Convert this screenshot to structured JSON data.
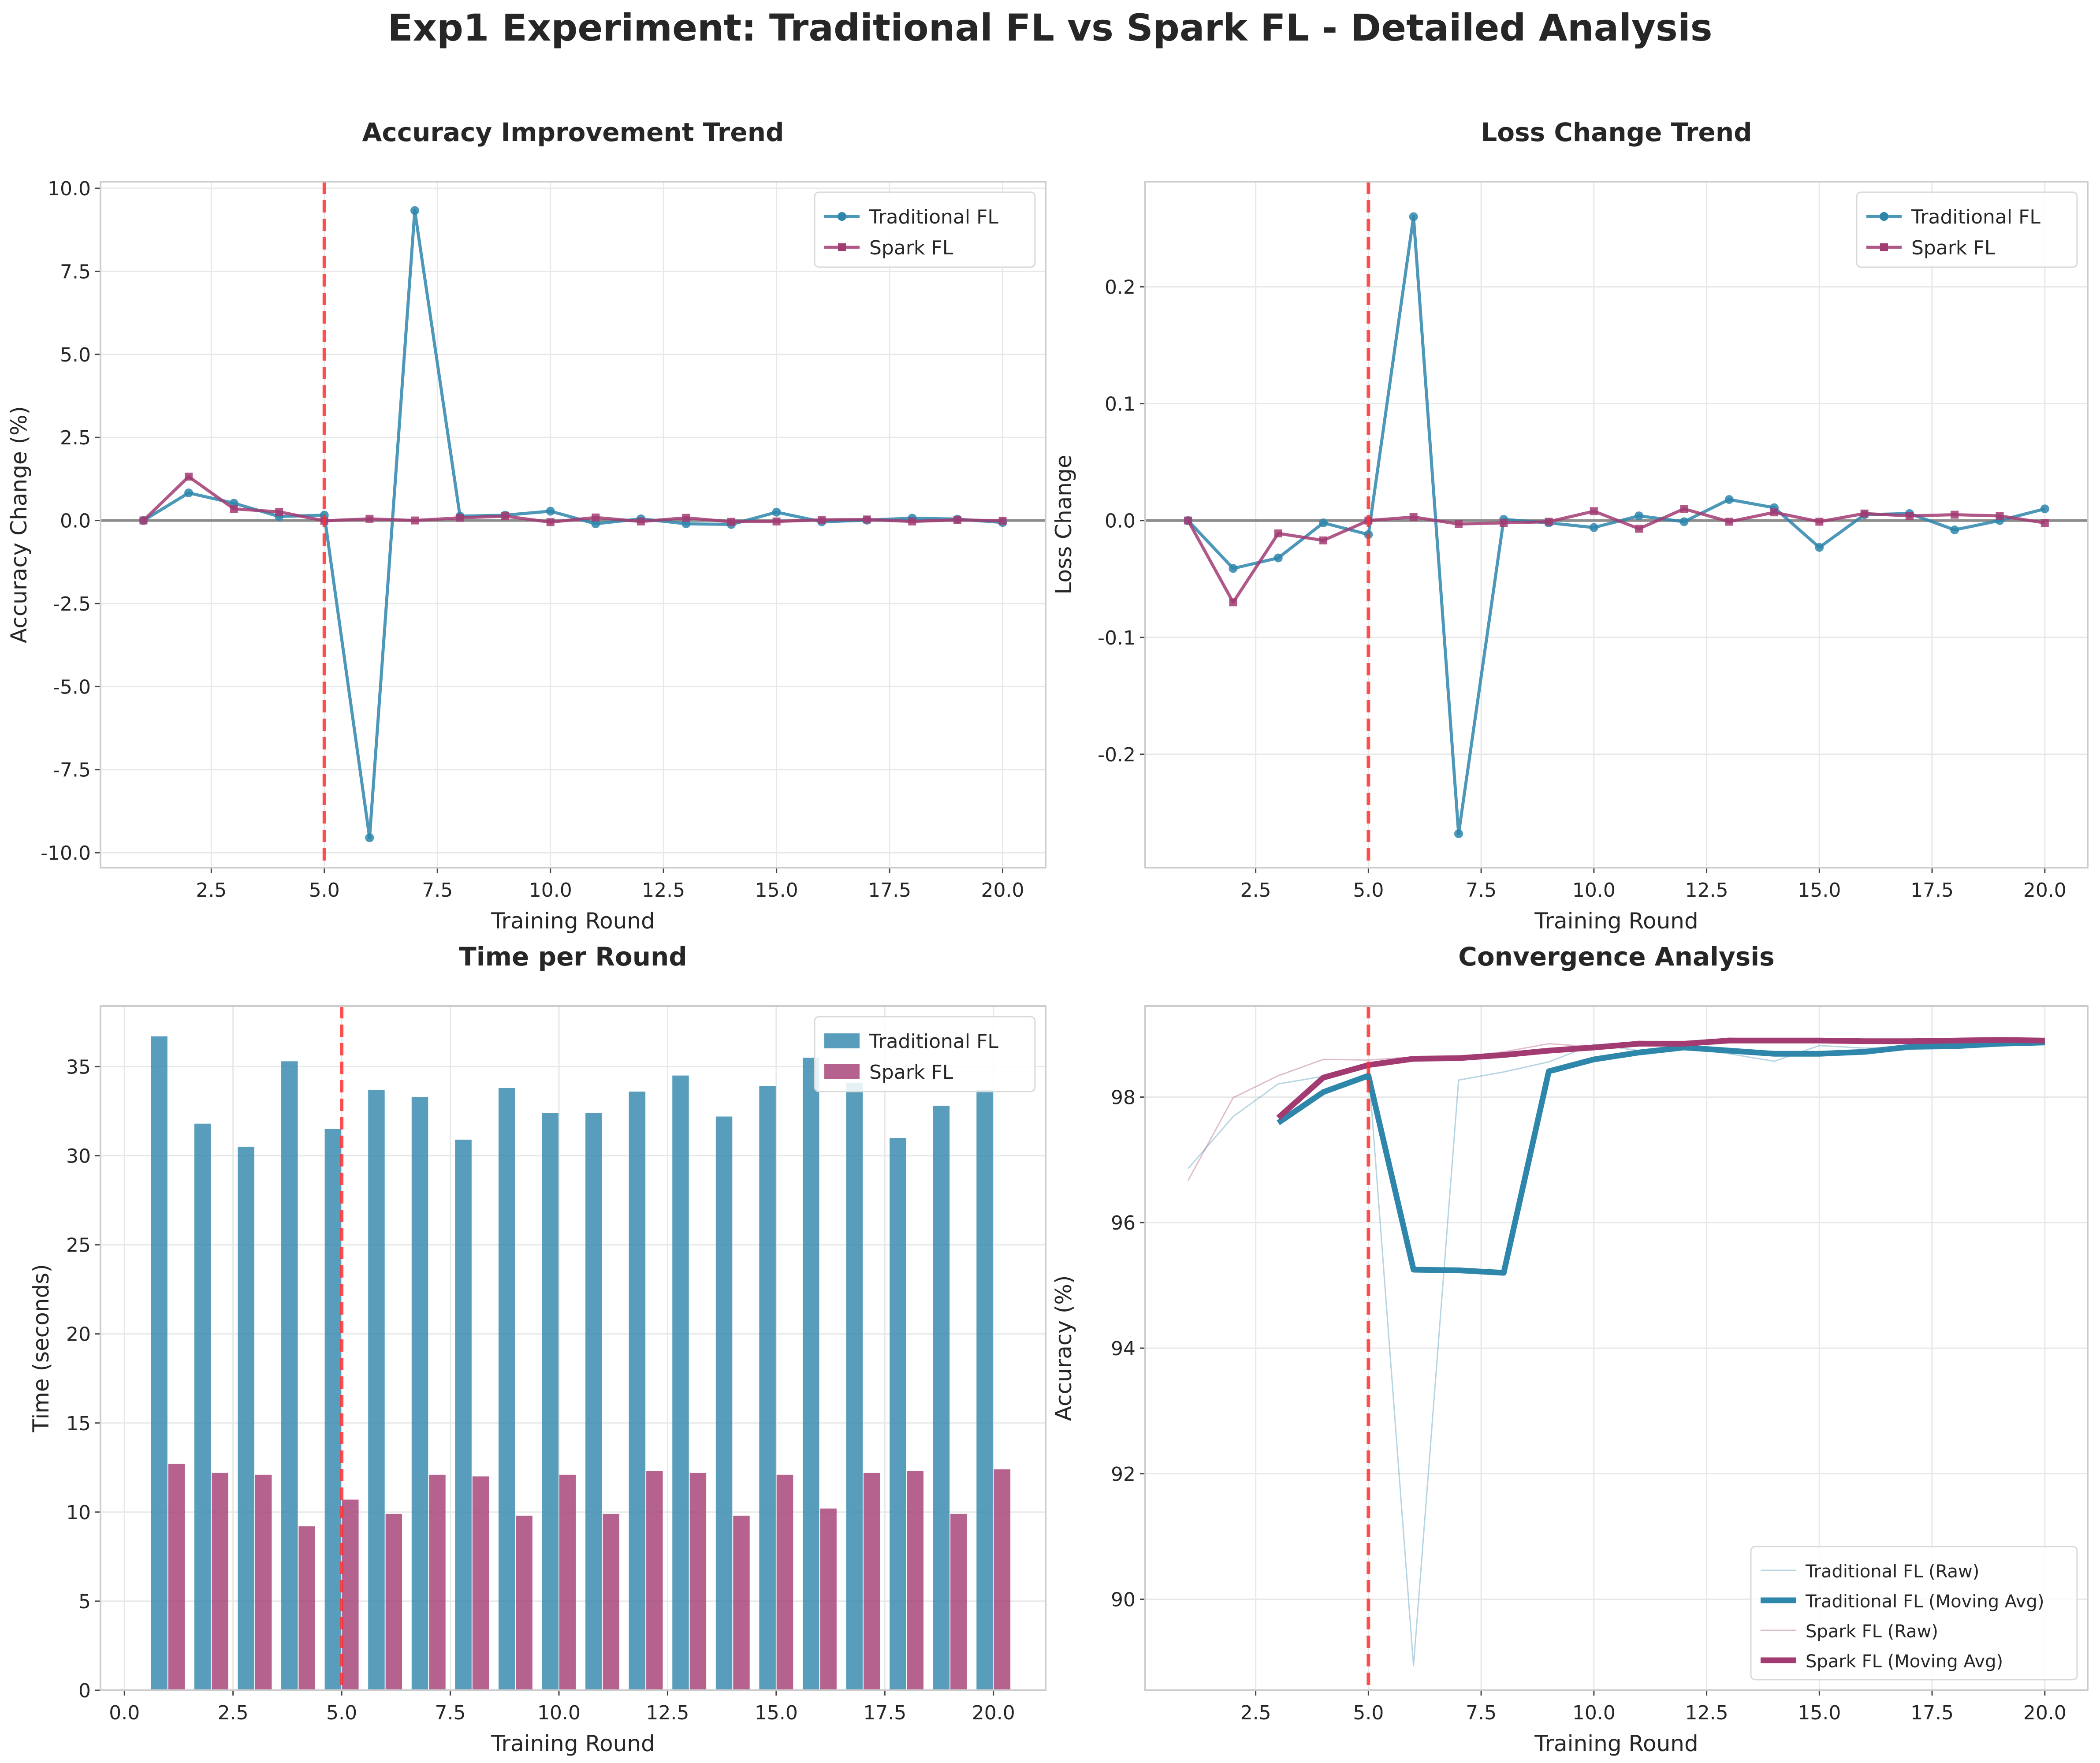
{
  "figure_title": "Exp1 Experiment: Traditional FL vs Spark FL - Detailed Analysis",
  "colors": {
    "traditional": "#2E86AB",
    "spark": "#A23B72",
    "vline": "#FF3030",
    "zero": "#8c8c8c",
    "grid": "#e8e8e8",
    "frame": "#cccccc"
  },
  "chart_data": [
    {
      "type": "line",
      "title": "Accuracy Improvement Trend",
      "xlabel": "Training Round",
      "ylabel": "Accuracy Change (%)",
      "xlim": [
        0.05,
        20.95
      ],
      "ylim": [
        -10.45,
        10.2
      ],
      "xticks": [
        2.5,
        5.0,
        7.5,
        10.0,
        12.5,
        15.0,
        17.5,
        20.0
      ],
      "xtick_labels": [
        "2.5",
        "5.0",
        "7.5",
        "10.0",
        "12.5",
        "15.0",
        "17.5",
        "20.0"
      ],
      "yticks": [
        -10,
        -7.5,
        -5,
        -2.5,
        0,
        2.5,
        5,
        7.5,
        10
      ],
      "ytick_labels": [
        "-10.0",
        "-7.5",
        "-5.0",
        "-2.5",
        "0.0",
        "2.5",
        "5.0",
        "7.5",
        "10.0"
      ],
      "x": [
        1,
        2,
        3,
        4,
        5,
        6,
        7,
        8,
        9,
        10,
        11,
        12,
        13,
        14,
        15,
        16,
        17,
        18,
        19,
        20
      ],
      "vline": 5,
      "hline": 0,
      "legend_position": "top-right",
      "series": [
        {
          "name": "Traditional FL",
          "color": "#2E86AB",
          "marker": "circle",
          "values": [
            0,
            0.83,
            0.52,
            0.12,
            0.16,
            -9.55,
            9.33,
            0.13,
            0.16,
            0.28,
            -0.1,
            0.05,
            -0.1,
            -0.12,
            0.25,
            -0.04,
            0.01,
            0.07,
            0.04,
            -0.06
          ]
        },
        {
          "name": "Spark FL",
          "color": "#A23B72",
          "marker": "square",
          "values": [
            0,
            1.32,
            0.35,
            0.26,
            -0.01,
            0.05,
            0.0,
            0.08,
            0.13,
            -0.05,
            0.09,
            -0.03,
            0.08,
            -0.04,
            -0.03,
            0.02,
            0.03,
            -0.03,
            0.02,
            -0.01
          ]
        }
      ]
    },
    {
      "type": "line",
      "title": "Loss Change Trend",
      "xlabel": "Training Round",
      "ylabel": "Loss Change",
      "xlim": [
        0.05,
        20.95
      ],
      "ylim": [
        -0.297,
        0.29
      ],
      "xticks": [
        2.5,
        5.0,
        7.5,
        10.0,
        12.5,
        15.0,
        17.5,
        20.0
      ],
      "xtick_labels": [
        "2.5",
        "5.0",
        "7.5",
        "10.0",
        "12.5",
        "15.0",
        "17.5",
        "20.0"
      ],
      "yticks": [
        -0.2,
        -0.1,
        0.0,
        0.1,
        0.2
      ],
      "ytick_labels": [
        "-0.2",
        "-0.1",
        "0.0",
        "0.1",
        "0.2"
      ],
      "x": [
        1,
        2,
        3,
        4,
        5,
        6,
        7,
        8,
        9,
        10,
        11,
        12,
        13,
        14,
        15,
        16,
        17,
        18,
        19,
        20
      ],
      "vline": 5,
      "hline": 0,
      "legend_position": "top-right",
      "series": [
        {
          "name": "Traditional FL",
          "color": "#2E86AB",
          "marker": "circle",
          "values": [
            0,
            -0.041,
            -0.032,
            -0.002,
            -0.012,
            0.26,
            -0.268,
            0.001,
            -0.002,
            -0.006,
            0.004,
            -0.001,
            0.018,
            0.011,
            -0.023,
            0.005,
            0.006,
            -0.008,
            0.0,
            0.01
          ]
        },
        {
          "name": "Spark FL",
          "color": "#A23B72",
          "marker": "square",
          "values": [
            0,
            -0.07,
            -0.011,
            -0.017,
            0.0,
            0.003,
            -0.003,
            -0.002,
            -0.001,
            0.008,
            -0.007,
            0.01,
            -0.001,
            0.007,
            -0.001,
            0.006,
            0.004,
            0.005,
            0.004,
            -0.002
          ]
        }
      ]
    },
    {
      "type": "bar",
      "title": "Time per Round",
      "xlabel": "Training Round",
      "ylabel": "Time (seconds)",
      "xlim": [
        -0.55,
        21.2
      ],
      "ylim": [
        0,
        38.4
      ],
      "xticks": [
        0.0,
        2.5,
        5.0,
        7.5,
        10.0,
        12.5,
        15.0,
        17.5,
        20.0
      ],
      "xtick_labels": [
        "0.0",
        "2.5",
        "5.0",
        "7.5",
        "10.0",
        "12.5",
        "15.0",
        "17.5",
        "20.0"
      ],
      "yticks": [
        0,
        5,
        10,
        15,
        20,
        25,
        30,
        35
      ],
      "ytick_labels": [
        "0",
        "5",
        "10",
        "15",
        "20",
        "25",
        "30",
        "35"
      ],
      "x": [
        1,
        2,
        3,
        4,
        5,
        6,
        7,
        8,
        9,
        10,
        11,
        12,
        13,
        14,
        15,
        16,
        17,
        18,
        19,
        20
      ],
      "vline": 5,
      "legend_position": "top-right",
      "series": [
        {
          "name": "Traditional FL",
          "color": "#2E86AB",
          "values": [
            36.7,
            31.8,
            30.5,
            35.3,
            31.5,
            33.7,
            33.3,
            30.9,
            33.8,
            32.4,
            32.4,
            33.6,
            34.5,
            32.2,
            33.9,
            35.5,
            34.1,
            31.0,
            32.8,
            33.7
          ]
        },
        {
          "name": "Spark FL",
          "color": "#A23B72",
          "values": [
            12.7,
            12.2,
            12.1,
            9.2,
            10.7,
            9.9,
            12.1,
            12.0,
            9.8,
            12.1,
            9.9,
            12.3,
            12.2,
            9.8,
            12.1,
            10.2,
            12.2,
            12.3,
            9.9,
            12.4
          ]
        }
      ]
    },
    {
      "type": "line",
      "title": "Convergence Analysis",
      "xlabel": "Training Round",
      "ylabel": "Accuracy (%)",
      "xlim": [
        0.05,
        20.95
      ],
      "ylim": [
        88.55,
        99.45
      ],
      "xticks": [
        2.5,
        5.0,
        7.5,
        10.0,
        12.5,
        15.0,
        17.5,
        20.0
      ],
      "xtick_labels": [
        "2.5",
        "5.0",
        "7.5",
        "10.0",
        "12.5",
        "15.0",
        "17.5",
        "20.0"
      ],
      "yticks": [
        90,
        92,
        94,
        96,
        98
      ],
      "ytick_labels": [
        "90",
        "92",
        "94",
        "96",
        "98"
      ],
      "vline": 5,
      "legend_position": "bottom-right",
      "series": [
        {
          "name": "Traditional FL (Raw)",
          "color": "#2E86AB",
          "style": "thin",
          "x": [
            1,
            2,
            3,
            4,
            5,
            6,
            7,
            8,
            9,
            10,
            11,
            12,
            13,
            14,
            15,
            16,
            17,
            18,
            19,
            20
          ],
          "values": [
            96.86,
            97.69,
            98.21,
            98.33,
            98.49,
            88.94,
            98.27,
            98.4,
            98.56,
            98.84,
            98.74,
            98.79,
            98.69,
            98.57,
            98.82,
            98.78,
            98.79,
            98.86,
            98.9,
            98.84
          ]
        },
        {
          "name": "Traditional FL (Moving Avg)",
          "color": "#2E86AB",
          "style": "thick",
          "x": [
            3,
            4,
            5,
            6,
            7,
            8,
            9,
            10,
            11,
            12,
            13,
            14,
            15,
            16,
            17,
            18,
            19,
            20
          ],
          "values": [
            97.59,
            98.08,
            98.34,
            95.25,
            95.24,
            95.2,
            98.41,
            98.6,
            98.71,
            98.79,
            98.74,
            98.69,
            98.69,
            98.72,
            98.8,
            98.81,
            98.85,
            98.87
          ]
        },
        {
          "name": "Spark FL (Raw)",
          "color": "#A23B72",
          "style": "thin",
          "x": [
            1,
            2,
            3,
            4,
            5,
            6,
            7,
            8,
            9,
            10,
            11,
            12,
            13,
            14,
            15,
            16,
            17,
            18,
            19,
            20
          ],
          "values": [
            96.67,
            97.99,
            98.34,
            98.6,
            98.59,
            98.64,
            98.64,
            98.72,
            98.85,
            98.8,
            98.89,
            98.86,
            98.94,
            98.9,
            98.87,
            98.89,
            98.92,
            98.89,
            98.91,
            98.9
          ]
        },
        {
          "name": "Spark FL (Moving Avg)",
          "color": "#A23B72",
          "style": "thick",
          "x": [
            3,
            4,
            5,
            6,
            7,
            8,
            9,
            10,
            11,
            12,
            13,
            14,
            15,
            16,
            17,
            18,
            19,
            20
          ],
          "values": [
            97.67,
            98.31,
            98.51,
            98.61,
            98.62,
            98.67,
            98.74,
            98.79,
            98.85,
            98.85,
            98.9,
            98.9,
            98.9,
            98.89,
            98.89,
            98.9,
            98.91,
            98.9
          ]
        }
      ]
    }
  ]
}
